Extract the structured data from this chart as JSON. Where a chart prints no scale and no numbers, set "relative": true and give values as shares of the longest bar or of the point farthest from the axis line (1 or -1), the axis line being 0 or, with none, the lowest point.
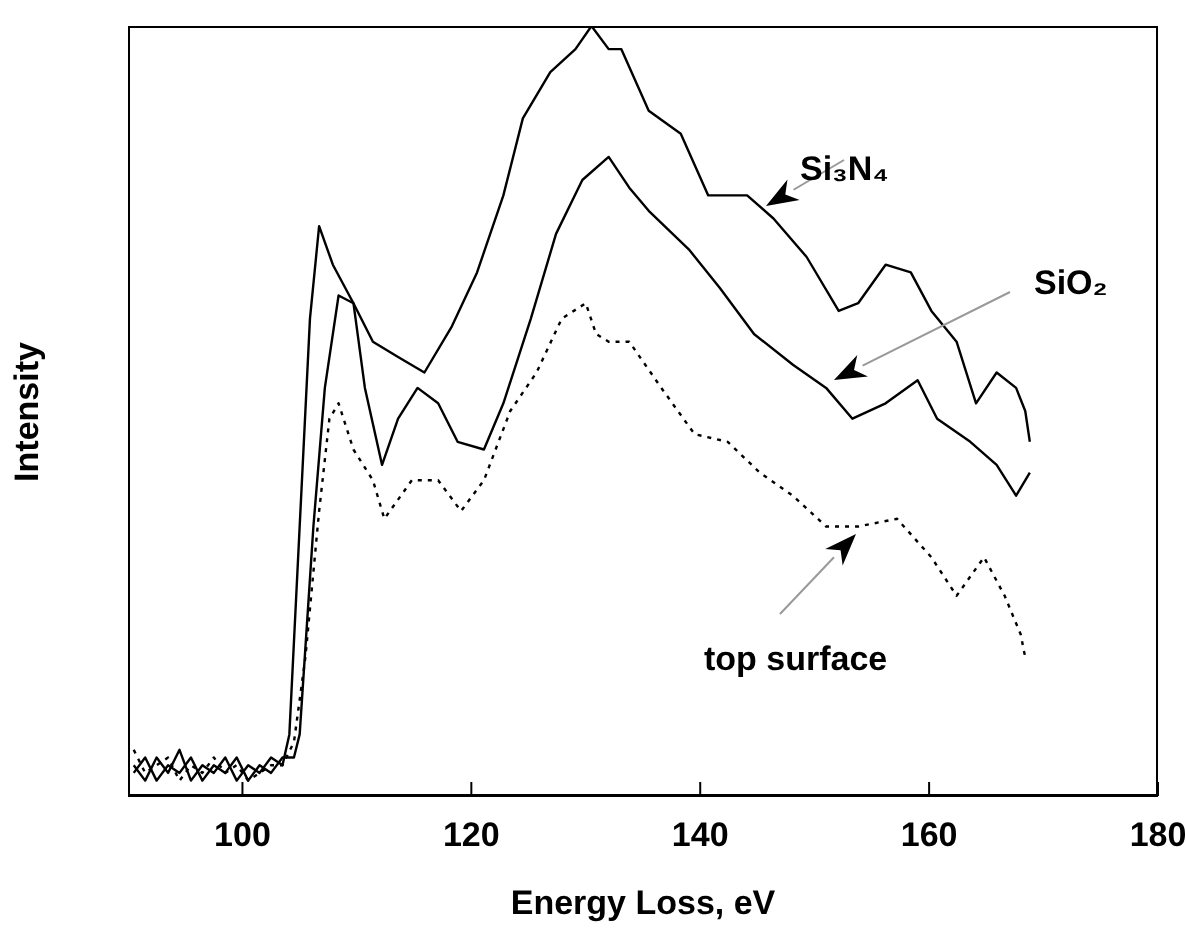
{
  "chart_data": {
    "type": "line",
    "relative": true,
    "xlabel": "Energy Loss, eV",
    "ylabel": "Intensity",
    "xlim": [
      90,
      180
    ],
    "xticks": [
      100,
      120,
      140,
      160,
      180
    ],
    "marker": "none",
    "series": [
      {
        "color": "#000000",
        "line_style": "solid",
        "x": [
          90.5,
          91.5,
          92.5,
          93.5,
          94.5,
          95.5,
          96.5,
          97.5,
          98.5,
          99.5,
          100.5,
          101.5,
          102.5,
          103.5,
          104.1,
          105,
          105.9,
          106.7,
          107.9,
          109.7,
          111.4,
          113.6,
          115.9,
          118.3,
          120.5,
          122.8,
          124.5,
          126.9,
          129.1,
          130.5,
          132,
          133.1,
          135.5,
          138.3,
          140.7,
          144.1,
          146.4,
          149.3,
          152.1,
          153.8,
          156.2,
          158.4,
          160.2,
          162.4,
          164.1,
          165.9,
          167.6,
          168.4,
          168.8
        ],
        "values": [
          0.04,
          0.02,
          0.05,
          0.03,
          0.06,
          0.02,
          0.04,
          0.03,
          0.05,
          0.02,
          0.04,
          0.03,
          0.05,
          0.04,
          0.08,
          0.35,
          0.62,
          0.74,
          0.69,
          0.64,
          0.59,
          0.57,
          0.55,
          0.61,
          0.68,
          0.78,
          0.88,
          0.94,
          0.97,
          1.0,
          0.97,
          0.97,
          0.89,
          0.86,
          0.78,
          0.78,
          0.75,
          0.7,
          0.63,
          0.64,
          0.69,
          0.68,
          0.63,
          0.59,
          0.51,
          0.55,
          0.53,
          0.5,
          0.46
        ]
      },
      {
        "color": "#000000",
        "line_style": "solid",
        "x": [
          90.5,
          91.5,
          92.5,
          93.5,
          94.5,
          95.5,
          96.5,
          97.5,
          98.5,
          99.5,
          100.5,
          101.5,
          102.5,
          103.5,
          104.5,
          105,
          106.2,
          107.2,
          108.4,
          109.7,
          110.7,
          112.2,
          113.6,
          115.3,
          117.1,
          118.8,
          121.1,
          122.8,
          125.2,
          127.4,
          129.7,
          132,
          133.8,
          135.5,
          139,
          141.7,
          144.7,
          148.1,
          151,
          153.3,
          156.2,
          159,
          160.7,
          163.6,
          165.9,
          167.6,
          168.8
        ],
        "values": [
          0.03,
          0.05,
          0.02,
          0.04,
          0.03,
          0.05,
          0.02,
          0.04,
          0.03,
          0.05,
          0.02,
          0.04,
          0.03,
          0.05,
          0.05,
          0.08,
          0.35,
          0.53,
          0.65,
          0.64,
          0.53,
          0.43,
          0.49,
          0.53,
          0.51,
          0.46,
          0.45,
          0.51,
          0.62,
          0.73,
          0.8,
          0.83,
          0.79,
          0.76,
          0.71,
          0.66,
          0.6,
          0.56,
          0.53,
          0.49,
          0.51,
          0.54,
          0.49,
          0.46,
          0.43,
          0.39,
          0.42
        ]
      },
      {
        "color": "#000000",
        "line_style": "dotted",
        "x": [
          90.5,
          91.5,
          92.5,
          93.5,
          94.5,
          95.5,
          96.5,
          97.5,
          98.5,
          99.5,
          100.5,
          101.5,
          102.5,
          103.5,
          104.5,
          105.5,
          106.7,
          107.6,
          108.4,
          109.7,
          111.4,
          112.4,
          114.8,
          117.1,
          119.1,
          121.1,
          123.4,
          125.7,
          127.9,
          130,
          130.9,
          132,
          133.8,
          136.6,
          139.5,
          142.4,
          145.2,
          148.1,
          151,
          153.8,
          157.2,
          160.2,
          162.4,
          164.8,
          166.6,
          168,
          168.4
        ],
        "values": [
          0.06,
          0.03,
          0.04,
          0.05,
          0.02,
          0.04,
          0.03,
          0.05,
          0.03,
          0.04,
          0.02,
          0.03,
          0.04,
          0.04,
          0.07,
          0.18,
          0.37,
          0.49,
          0.51,
          0.45,
          0.41,
          0.36,
          0.41,
          0.41,
          0.37,
          0.41,
          0.5,
          0.55,
          0.62,
          0.64,
          0.6,
          0.59,
          0.59,
          0.53,
          0.47,
          0.46,
          0.42,
          0.39,
          0.35,
          0.35,
          0.36,
          0.31,
          0.26,
          0.31,
          0.26,
          0.21,
          0.18
        ]
      }
    ],
    "annotations": [
      "Si₃N₄",
      "SiO₂",
      "top surface"
    ]
  }
}
